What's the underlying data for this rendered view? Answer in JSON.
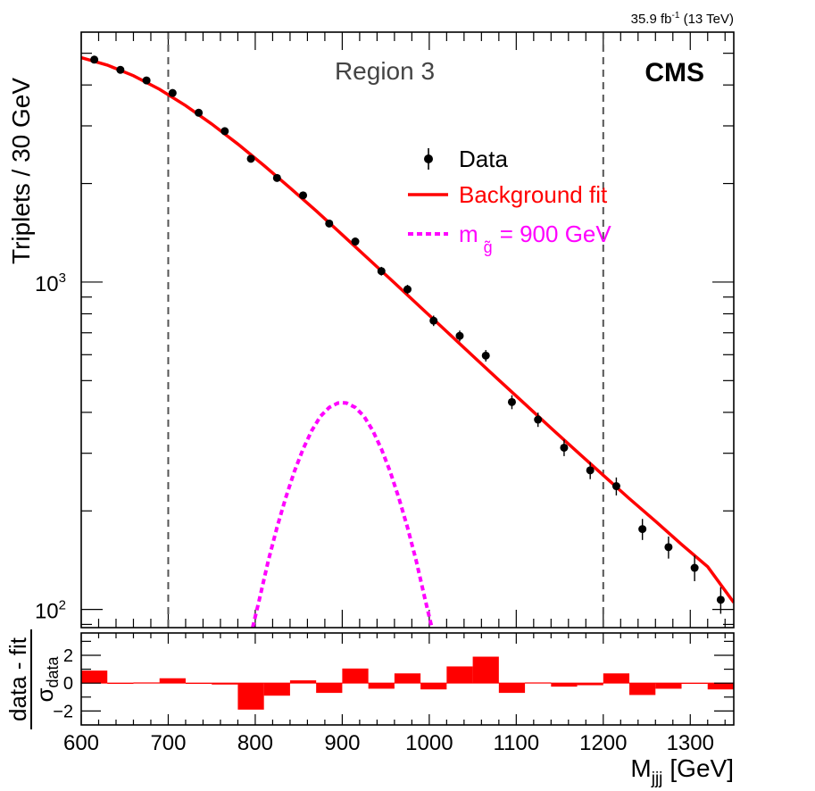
{
  "chart_data": {
    "type": "scatter",
    "lumi_text": {
      "main": "35.9 fb",
      "sup": "-1",
      "rest": " (13 TeV)"
    },
    "experiment_label": "CMS",
    "region_label": "Region 3",
    "upper_panel": {
      "ylabel": "Triplets / 30 GeV",
      "yscale": "log",
      "ylim": [
        88,
        5800
      ],
      "ytick_labels": [
        {
          "value": 100,
          "base": "10",
          "exp": "2"
        },
        {
          "value": 1000,
          "base": "10",
          "exp": "3"
        }
      ],
      "region_bounds": [
        700,
        1200
      ],
      "legend": {
        "data": "Data",
        "fit": "Background fit",
        "signal_prefix": "m",
        "signal_sub": "g̃",
        "signal_suffix": "= 900 GeV"
      },
      "series": [
        {
          "name": "Data",
          "x": [
            615,
            645,
            675,
            705,
            735,
            765,
            795,
            825,
            855,
            885,
            915,
            945,
            975,
            1005,
            1035,
            1065,
            1095,
            1125,
            1155,
            1185,
            1215,
            1245,
            1275,
            1305,
            1335
          ],
          "y": [
            4780,
            4450,
            4130,
            3780,
            3290,
            2890,
            2380,
            2080,
            1840,
            1510,
            1330,
            1080,
            950,
            762,
            685,
            596,
            430,
            380,
            312,
            266,
            238,
            176,
            155,
            134,
            107
          ],
          "yerr": [
            70,
            67,
            64,
            62,
            57,
            54,
            49,
            46,
            43,
            39,
            36,
            33,
            31,
            28,
            26,
            24,
            21,
            19,
            18,
            16,
            15,
            13,
            12,
            12,
            10
          ]
        },
        {
          "name": "Background fit",
          "x": [
            600,
            630,
            660,
            690,
            720,
            750,
            780,
            810,
            840,
            870,
            900,
            930,
            960,
            990,
            1020,
            1050,
            1080,
            1110,
            1140,
            1170,
            1200,
            1230,
            1260,
            1290,
            1320,
            1350
          ],
          "y": [
            4850,
            4600,
            4270,
            3880,
            3460,
            3040,
            2640,
            2270,
            1940,
            1650,
            1395,
            1178,
            994,
            838,
            706,
            595,
            502,
            424,
            358,
            303,
            257,
            218,
            186,
            158,
            135,
            105
          ]
        },
        {
          "name": "m_g̃ = 900 GeV",
          "x": [
            797,
            805,
            815,
            825,
            835,
            845,
            855,
            865,
            875,
            885,
            895,
            900,
            905,
            915,
            925,
            935,
            945,
            955,
            965,
            975,
            985,
            995,
            1003
          ],
          "y": [
            88,
            108,
            141,
            178,
            219,
            264,
            309,
            352,
            389,
            414,
            427,
            428,
            427,
            414,
            389,
            352,
            309,
            264,
            219,
            178,
            141,
            108,
            88
          ]
        }
      ]
    },
    "lower_panel": {
      "ylabel_top": "data - fit",
      "ylabel_sigma": "σ",
      "ylabel_sub": "data",
      "ylim": [
        -3,
        3.6
      ],
      "ytick_labels": [
        -2,
        0,
        2
      ],
      "bin_edges": [
        600,
        630,
        660,
        690,
        720,
        750,
        780,
        810,
        840,
        870,
        900,
        930,
        960,
        990,
        1020,
        1050,
        1080,
        1110,
        1140,
        1170,
        1200,
        1230,
        1260,
        1290,
        1320,
        1350
      ],
      "values": [
        0.9,
        0.0,
        0.05,
        0.35,
        0.0,
        -0.1,
        -1.9,
        -0.9,
        0.2,
        -0.7,
        1.05,
        -0.4,
        0.7,
        -0.45,
        1.2,
        1.9,
        -0.7,
        0.05,
        -0.25,
        -0.15,
        0.7,
        -0.85,
        -0.4,
        0.0,
        -0.45
      ]
    },
    "xaxis": {
      "label_main": "M",
      "label_sub": "jjj",
      "label_unit": "[GeV]",
      "xlim": [
        600,
        1350
      ],
      "tick_labels": [
        600,
        700,
        800,
        900,
        1000,
        1100,
        1200,
        1300
      ]
    }
  },
  "colors": {
    "data": "#000000",
    "fit": "#ff0000",
    "signal": "#ff00ff",
    "residual": "#ff0000",
    "region_text": "#444444",
    "region_line": "#555555"
  }
}
